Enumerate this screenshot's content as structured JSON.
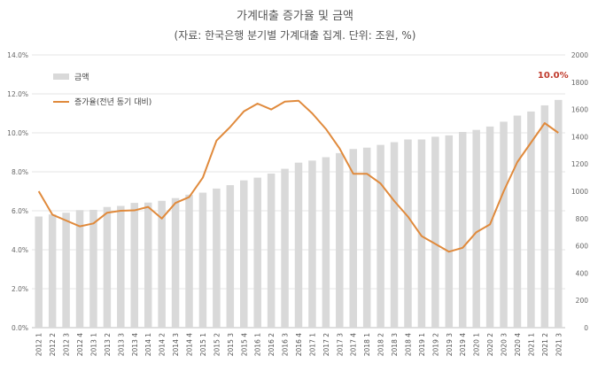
{
  "chart_data": {
    "type": "bar+line",
    "title": "가계대출 증가율 및 금액",
    "subtitle": "(자료: 한국은행 분기별 가계대출 집계. 단위: 조원, %)",
    "categories": [
      "2012 1",
      "2012 2",
      "2012 3",
      "2012 4",
      "2013 1",
      "2013 2",
      "2013 3",
      "2013 4",
      "2014 1",
      "2014 2",
      "2014 3",
      "2014 4",
      "2015 1",
      "2015 2",
      "2015 3",
      "2015 4",
      "2016 1",
      "2016 2",
      "2016 3",
      "2016 4",
      "2017 1",
      "2017 2",
      "2017 3",
      "2017 4",
      "2018 1",
      "2018 2",
      "2018 3",
      "2018 4",
      "2019 1",
      "2019 2",
      "2019 3",
      "2019 4",
      "2020 1",
      "2020 2",
      "2020 3",
      "2020 4",
      "2021 1",
      "2021 2",
      "2021 3"
    ],
    "series": [
      {
        "name": "금액",
        "type": "bar",
        "axis": "right",
        "color": "#d9d9d9",
        "values": [
          815,
          830,
          843,
          862,
          864,
          885,
          893,
          915,
          917,
          930,
          950,
          975,
          990,
          1020,
          1045,
          1080,
          1100,
          1130,
          1165,
          1210,
          1225,
          1250,
          1280,
          1310,
          1320,
          1340,
          1360,
          1380,
          1380,
          1400,
          1410,
          1435,
          1450,
          1475,
          1510,
          1555,
          1585,
          1630,
          1670
        ]
      },
      {
        "name": "증가율(전년 동기 대비)",
        "type": "line",
        "axis": "left",
        "color": "#e08a3c",
        "values": [
          7.0,
          5.8,
          5.5,
          5.2,
          5.35,
          5.9,
          6.0,
          6.02,
          6.2,
          5.6,
          6.4,
          6.7,
          7.7,
          9.6,
          10.3,
          11.1,
          11.5,
          11.2,
          11.6,
          11.65,
          11.0,
          10.2,
          9.2,
          7.9,
          7.9,
          7.4,
          6.5,
          5.7,
          4.7,
          4.3,
          3.9,
          4.1,
          4.9,
          5.3,
          7.0,
          8.5,
          9.5,
          10.5,
          10.0
        ]
      }
    ],
    "left_axis": {
      "ylim": [
        0,
        14
      ],
      "ticks": [
        "0.0%",
        "2.0%",
        "4.0%",
        "6.0%",
        "8.0%",
        "10.0%",
        "12.0%",
        "14.0%"
      ]
    },
    "right_axis": {
      "ylim": [
        0,
        2000
      ],
      "ticks": [
        "0",
        "200",
        "400",
        "600",
        "800",
        "1000",
        "1200",
        "1400",
        "1600",
        "1800",
        "2000"
      ]
    },
    "legend": {
      "position": "top-left",
      "items": [
        "금액",
        "증가율(전년 동기 대비)"
      ]
    },
    "annotation": {
      "text": "10.0%",
      "category": "2021 3",
      "color": "#c0392b"
    },
    "grid": "horizontal"
  }
}
